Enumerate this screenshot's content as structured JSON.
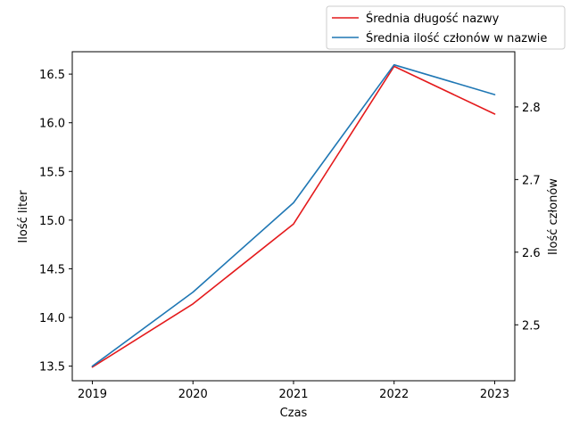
{
  "chart_data": {
    "type": "line",
    "x": [
      2019,
      2020,
      2021,
      2022,
      2023
    ],
    "xlabel": "Czas",
    "xticks": [
      "2019",
      "2020",
      "2021",
      "2022",
      "2023"
    ],
    "xlim": [
      2018.8,
      2023.2
    ],
    "left_axis": {
      "label": "Ilość liter",
      "ylim": [
        13.35,
        16.73
      ],
      "ticks": [
        "13.5",
        "14.0",
        "14.5",
        "15.0",
        "15.5",
        "16.0",
        "16.5"
      ]
    },
    "right_axis": {
      "label": "Ilość członów",
      "ylim": [
        2.423,
        2.876
      ],
      "ticks": [
        "2.5",
        "2.6",
        "2.7",
        "2.8"
      ]
    },
    "series": [
      {
        "name": "Średnia długość nazwy",
        "axis": "left",
        "color": "#e41a1c",
        "values": [
          13.49,
          14.14,
          14.96,
          16.58,
          16.09
        ]
      },
      {
        "name": "Średnia ilość członów w nazwie",
        "axis": "right",
        "color": "#1f77b4",
        "values": [
          2.443,
          2.545,
          2.668,
          2.858,
          2.817
        ]
      }
    ],
    "legend_placement": "top-right, outside",
    "grid": false
  }
}
